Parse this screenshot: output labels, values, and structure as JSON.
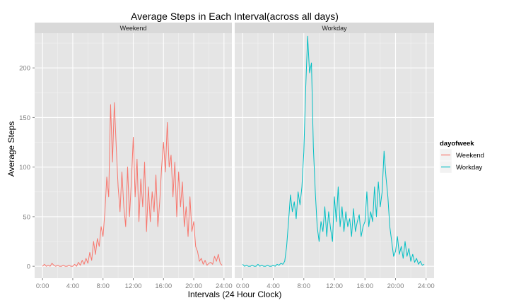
{
  "chart_data": {
    "type": "line",
    "title": "Average Steps in Each Interval(across all days)",
    "xlabel": "Intervals (24 Hour Clock)",
    "ylabel": "Average Steps",
    "facet_variable": "dayofweek",
    "panels": [
      "Weekend",
      "Workday"
    ],
    "x_unit": "hours",
    "xlim": [
      0,
      24
    ],
    "ylim": [
      -12,
      235
    ],
    "x_ticks": [
      0,
      4,
      8,
      12,
      16,
      20,
      24
    ],
    "x_tick_labels": [
      "0:00",
      "4:00",
      "8:00",
      "12:00",
      "16:00",
      "20:00",
      "24:00"
    ],
    "y_ticks": [
      0,
      50,
      100,
      150,
      200
    ],
    "y_tick_labels": [
      "0",
      "50",
      "100",
      "150",
      "200"
    ],
    "grid": true,
    "legend": {
      "title": "dayofweek",
      "position": "right",
      "entries": [
        "Weekend",
        "Workday"
      ]
    },
    "colors": {
      "Weekend": "#F8766D",
      "Workday": "#00BFC4"
    },
    "series": [
      {
        "name": "Weekend",
        "points": [
          [
            0.0,
            0
          ],
          [
            0.25,
            2
          ],
          [
            0.5,
            0
          ],
          [
            0.75,
            1
          ],
          [
            1.0,
            0
          ],
          [
            1.25,
            3
          ],
          [
            1.5,
            1
          ],
          [
            1.75,
            0
          ],
          [
            2.0,
            1
          ],
          [
            2.25,
            0
          ],
          [
            2.5,
            0
          ],
          [
            2.75,
            1
          ],
          [
            3.0,
            0
          ],
          [
            3.25,
            0
          ],
          [
            3.5,
            1
          ],
          [
            3.75,
            0
          ],
          [
            4.0,
            0
          ],
          [
            4.25,
            2
          ],
          [
            4.5,
            0
          ],
          [
            4.75,
            4
          ],
          [
            5.0,
            1
          ],
          [
            5.25,
            6
          ],
          [
            5.5,
            2
          ],
          [
            5.75,
            8
          ],
          [
            6.0,
            3
          ],
          [
            6.25,
            14
          ],
          [
            6.5,
            6
          ],
          [
            6.75,
            25
          ],
          [
            7.0,
            12
          ],
          [
            7.25,
            28
          ],
          [
            7.5,
            20
          ],
          [
            7.75,
            40
          ],
          [
            8.0,
            30
          ],
          [
            8.25,
            55
          ],
          [
            8.5,
            90
          ],
          [
            8.75,
            70
          ],
          [
            9.0,
            163
          ],
          [
            9.25,
            105
          ],
          [
            9.5,
            165
          ],
          [
            9.75,
            120
          ],
          [
            10.0,
            80
          ],
          [
            10.25,
            55
          ],
          [
            10.5,
            95
          ],
          [
            10.75,
            60
          ],
          [
            11.0,
            40
          ],
          [
            11.25,
            100
          ],
          [
            11.5,
            50
          ],
          [
            11.75,
            85
          ],
          [
            12.0,
            130
          ],
          [
            12.25,
            70
          ],
          [
            12.5,
            108
          ],
          [
            12.75,
            45
          ],
          [
            13.0,
            88
          ],
          [
            13.25,
            60
          ],
          [
            13.5,
            105
          ],
          [
            13.75,
            35
          ],
          [
            14.0,
            80
          ],
          [
            14.25,
            45
          ],
          [
            14.5,
            75
          ],
          [
            14.75,
            55
          ],
          [
            15.0,
            92
          ],
          [
            15.25,
            40
          ],
          [
            15.5,
            65
          ],
          [
            15.75,
            100
          ],
          [
            16.0,
            125
          ],
          [
            16.25,
            95
          ],
          [
            16.5,
            145
          ],
          [
            16.75,
            100
          ],
          [
            17.0,
            112
          ],
          [
            17.25,
            70
          ],
          [
            17.5,
            105
          ],
          [
            17.75,
            50
          ],
          [
            18.0,
            95
          ],
          [
            18.25,
            60
          ],
          [
            18.5,
            85
          ],
          [
            18.75,
            40
          ],
          [
            19.0,
            60
          ],
          [
            19.25,
            30
          ],
          [
            19.5,
            70
          ],
          [
            19.75,
            35
          ],
          [
            20.0,
            45
          ],
          [
            20.25,
            20
          ],
          [
            20.5,
            15
          ],
          [
            20.75,
            5
          ],
          [
            21.0,
            8
          ],
          [
            21.25,
            2
          ],
          [
            21.5,
            6
          ],
          [
            21.75,
            1
          ],
          [
            22.0,
            3
          ],
          [
            22.25,
            4
          ],
          [
            22.5,
            2
          ],
          [
            22.75,
            10
          ],
          [
            23.0,
            5
          ],
          [
            23.25,
            12
          ],
          [
            23.5,
            3
          ],
          [
            23.75,
            1
          ]
        ]
      },
      {
        "name": "Workday",
        "points": [
          [
            0.0,
            2
          ],
          [
            0.25,
            0
          ],
          [
            0.5,
            1
          ],
          [
            0.75,
            0
          ],
          [
            1.0,
            0
          ],
          [
            1.25,
            1
          ],
          [
            1.5,
            0
          ],
          [
            1.75,
            0
          ],
          [
            2.0,
            2
          ],
          [
            2.25,
            0
          ],
          [
            2.5,
            1
          ],
          [
            2.75,
            0
          ],
          [
            3.0,
            0
          ],
          [
            3.25,
            1
          ],
          [
            3.5,
            0
          ],
          [
            3.75,
            0
          ],
          [
            4.0,
            1
          ],
          [
            4.25,
            0
          ],
          [
            4.5,
            2
          ],
          [
            4.75,
            1
          ],
          [
            5.0,
            3
          ],
          [
            5.25,
            2
          ],
          [
            5.5,
            5
          ],
          [
            5.75,
            20
          ],
          [
            6.0,
            45
          ],
          [
            6.25,
            72
          ],
          [
            6.5,
            55
          ],
          [
            6.75,
            65
          ],
          [
            7.0,
            48
          ],
          [
            7.25,
            75
          ],
          [
            7.5,
            62
          ],
          [
            7.75,
            80
          ],
          [
            8.0,
            115
          ],
          [
            8.25,
            180
          ],
          [
            8.5,
            232
          ],
          [
            8.75,
            195
          ],
          [
            9.0,
            205
          ],
          [
            9.25,
            120
          ],
          [
            9.5,
            75
          ],
          [
            9.75,
            40
          ],
          [
            10.0,
            25
          ],
          [
            10.25,
            45
          ],
          [
            10.5,
            35
          ],
          [
            10.75,
            60
          ],
          [
            11.0,
            30
          ],
          [
            11.25,
            55
          ],
          [
            11.5,
            38
          ],
          [
            11.75,
            25
          ],
          [
            12.0,
            70
          ],
          [
            12.25,
            45
          ],
          [
            12.5,
            80
          ],
          [
            12.75,
            40
          ],
          [
            13.0,
            60
          ],
          [
            13.25,
            35
          ],
          [
            13.5,
            55
          ],
          [
            13.75,
            40
          ],
          [
            14.0,
            48
          ],
          [
            14.25,
            30
          ],
          [
            14.5,
            58
          ],
          [
            14.75,
            35
          ],
          [
            15.0,
            45
          ],
          [
            15.25,
            52
          ],
          [
            15.5,
            30
          ],
          [
            15.75,
            40
          ],
          [
            16.0,
            45
          ],
          [
            16.25,
            75
          ],
          [
            16.5,
            40
          ],
          [
            16.75,
            55
          ],
          [
            17.0,
            45
          ],
          [
            17.25,
            80
          ],
          [
            17.5,
            50
          ],
          [
            17.75,
            85
          ],
          [
            18.0,
            60
          ],
          [
            18.25,
            75
          ],
          [
            18.5,
            116
          ],
          [
            18.75,
            90
          ],
          [
            19.0,
            70
          ],
          [
            19.25,
            40
          ],
          [
            19.5,
            25
          ],
          [
            19.75,
            10
          ],
          [
            20.0,
            15
          ],
          [
            20.25,
            30
          ],
          [
            20.5,
            12
          ],
          [
            20.75,
            20
          ],
          [
            21.0,
            8
          ],
          [
            21.25,
            25
          ],
          [
            21.5,
            10
          ],
          [
            21.75,
            18
          ],
          [
            22.0,
            5
          ],
          [
            22.25,
            12
          ],
          [
            22.5,
            4
          ],
          [
            22.75,
            8
          ],
          [
            23.0,
            2
          ],
          [
            23.25,
            5
          ],
          [
            23.5,
            1
          ],
          [
            23.75,
            2
          ]
        ]
      }
    ]
  }
}
